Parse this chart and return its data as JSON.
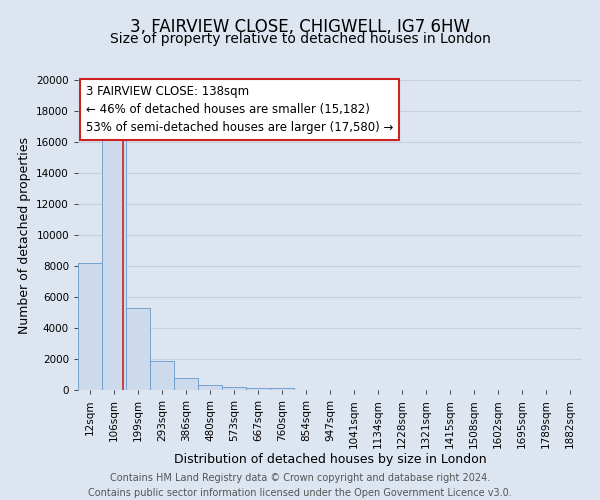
{
  "title": "3, FAIRVIEW CLOSE, CHIGWELL, IG7 6HW",
  "subtitle": "Size of property relative to detached houses in London",
  "xlabel": "Distribution of detached houses by size in London",
  "ylabel": "Number of detached properties",
  "bar_labels": [
    "12sqm",
    "106sqm",
    "199sqm",
    "293sqm",
    "386sqm",
    "480sqm",
    "573sqm",
    "667sqm",
    "760sqm",
    "854sqm",
    "947sqm",
    "1041sqm",
    "1134sqm",
    "1228sqm",
    "1321sqm",
    "1415sqm",
    "1508sqm",
    "1602sqm",
    "1695sqm",
    "1789sqm",
    "1882sqm"
  ],
  "bar_heights": [
    8200,
    16500,
    5300,
    1850,
    800,
    300,
    200,
    100,
    100,
    0,
    0,
    0,
    0,
    0,
    0,
    0,
    0,
    0,
    0,
    0,
    0
  ],
  "bar_color": "#ccdaec",
  "bar_edge_color": "#6699cc",
  "bar_width": 1.0,
  "vline_x": 1.38,
  "vline_color": "#cc2222",
  "ylim": [
    0,
    20000
  ],
  "yticks": [
    0,
    2000,
    4000,
    6000,
    8000,
    10000,
    12000,
    14000,
    16000,
    18000,
    20000
  ],
  "annotation_title": "3 FAIRVIEW CLOSE: 138sqm",
  "annotation_line1": "← 46% of detached houses are smaller (15,182)",
  "annotation_line2": "53% of semi-detached houses are larger (17,580) →",
  "footer_line1": "Contains HM Land Registry data © Crown copyright and database right 2024.",
  "footer_line2": "Contains public sector information licensed under the Open Government Licence v3.0.",
  "background_color": "#dde5f0",
  "plot_bg_color": "#dde5f0",
  "grid_color": "#c8d0dc",
  "title_fontsize": 12,
  "subtitle_fontsize": 10,
  "axis_label_fontsize": 9,
  "tick_fontsize": 7.5,
  "footer_fontsize": 7,
  "annotation_fontsize": 8.5
}
